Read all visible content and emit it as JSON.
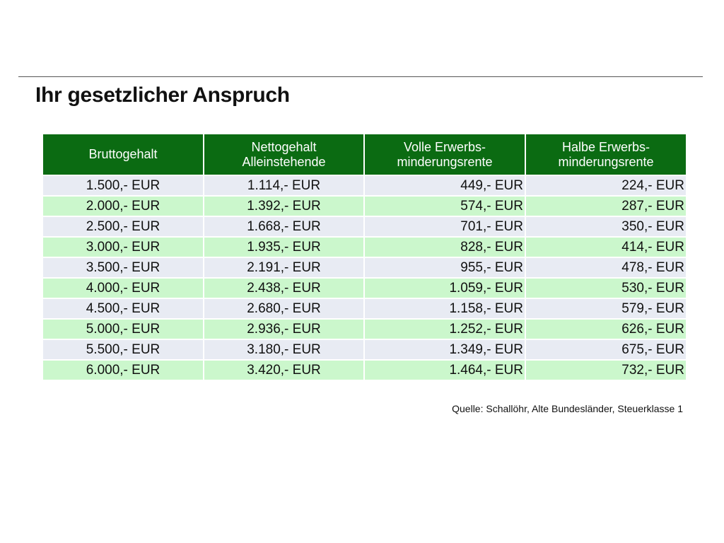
{
  "title": "Ihr gesetzlicher Anspruch",
  "table": {
    "headers": [
      [
        "Bruttogehalt"
      ],
      [
        "Nettogehalt",
        "Alleinstehende"
      ],
      [
        "Volle Erwerbs-",
        "minderungsrente"
      ],
      [
        "Halbe Erwerbs-",
        "minderungsrente"
      ]
    ],
    "rows": [
      [
        "1.500,- EUR",
        "1.114,- EUR",
        "449,- EUR",
        "224,- EUR"
      ],
      [
        "2.000,- EUR",
        "1.392,- EUR",
        "574,- EUR",
        "287,- EUR"
      ],
      [
        "2.500,- EUR",
        "1.668,- EUR",
        "701,- EUR",
        "350,- EUR"
      ],
      [
        "3.000,- EUR",
        "1.935,- EUR",
        "828,- EUR",
        "414,- EUR"
      ],
      [
        "3.500,- EUR",
        "2.191,- EUR",
        "955,- EUR",
        "478,- EUR"
      ],
      [
        "4.000,- EUR",
        "2.438,- EUR",
        "1.059,- EUR",
        "530,- EUR"
      ],
      [
        "4.500,- EUR",
        "2.680,- EUR",
        "1.158,- EUR",
        "579,- EUR"
      ],
      [
        "5.000,- EUR",
        "2.936,- EUR",
        "1.252,- EUR",
        "626,- EUR"
      ],
      [
        "5.500,- EUR",
        "3.180,- EUR",
        "1.349,- EUR",
        "675,- EUR"
      ],
      [
        "6.000,- EUR",
        "3.420,- EUR",
        "1.464,- EUR",
        "732,- EUR"
      ]
    ]
  },
  "source": "Quelle: Schallöhr, Alte Bundesländer, Steuerklasse 1",
  "colors": {
    "header_bg": "#0b6b12",
    "row_odd_bg": "#e8ebf3",
    "row_even_bg": "#cbf7cc"
  }
}
